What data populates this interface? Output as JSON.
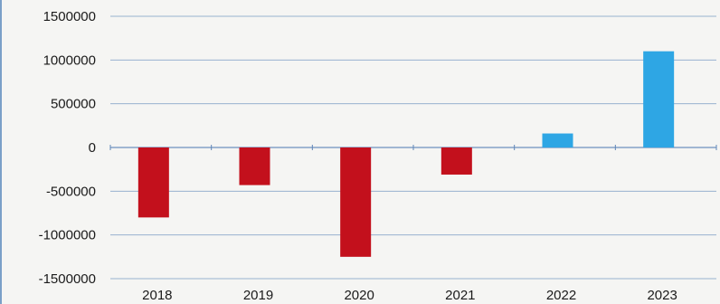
{
  "chart_data": {
    "type": "bar",
    "title": "",
    "xlabel": "",
    "ylabel": "",
    "categories": [
      "2018",
      "2019",
      "2020",
      "2021",
      "2022",
      "2023"
    ],
    "values": [
      -800000,
      -430000,
      -1250000,
      -310000,
      160000,
      1100000
    ],
    "ylim": [
      -1500000,
      1500000
    ],
    "yticks": [
      "1500000",
      "1000000",
      "500000",
      "0",
      "-500000",
      "-1000000",
      "-1500000"
    ],
    "ytick_values": [
      1500000,
      1000000,
      500000,
      0,
      -500000,
      -1000000,
      -1500000
    ],
    "grid": true,
    "legend": "none",
    "colors": {
      "negative": "#c3101c",
      "positive": "#2ea6e4",
      "grid": "#7a9cc4",
      "axis": "#5f86b8"
    }
  }
}
